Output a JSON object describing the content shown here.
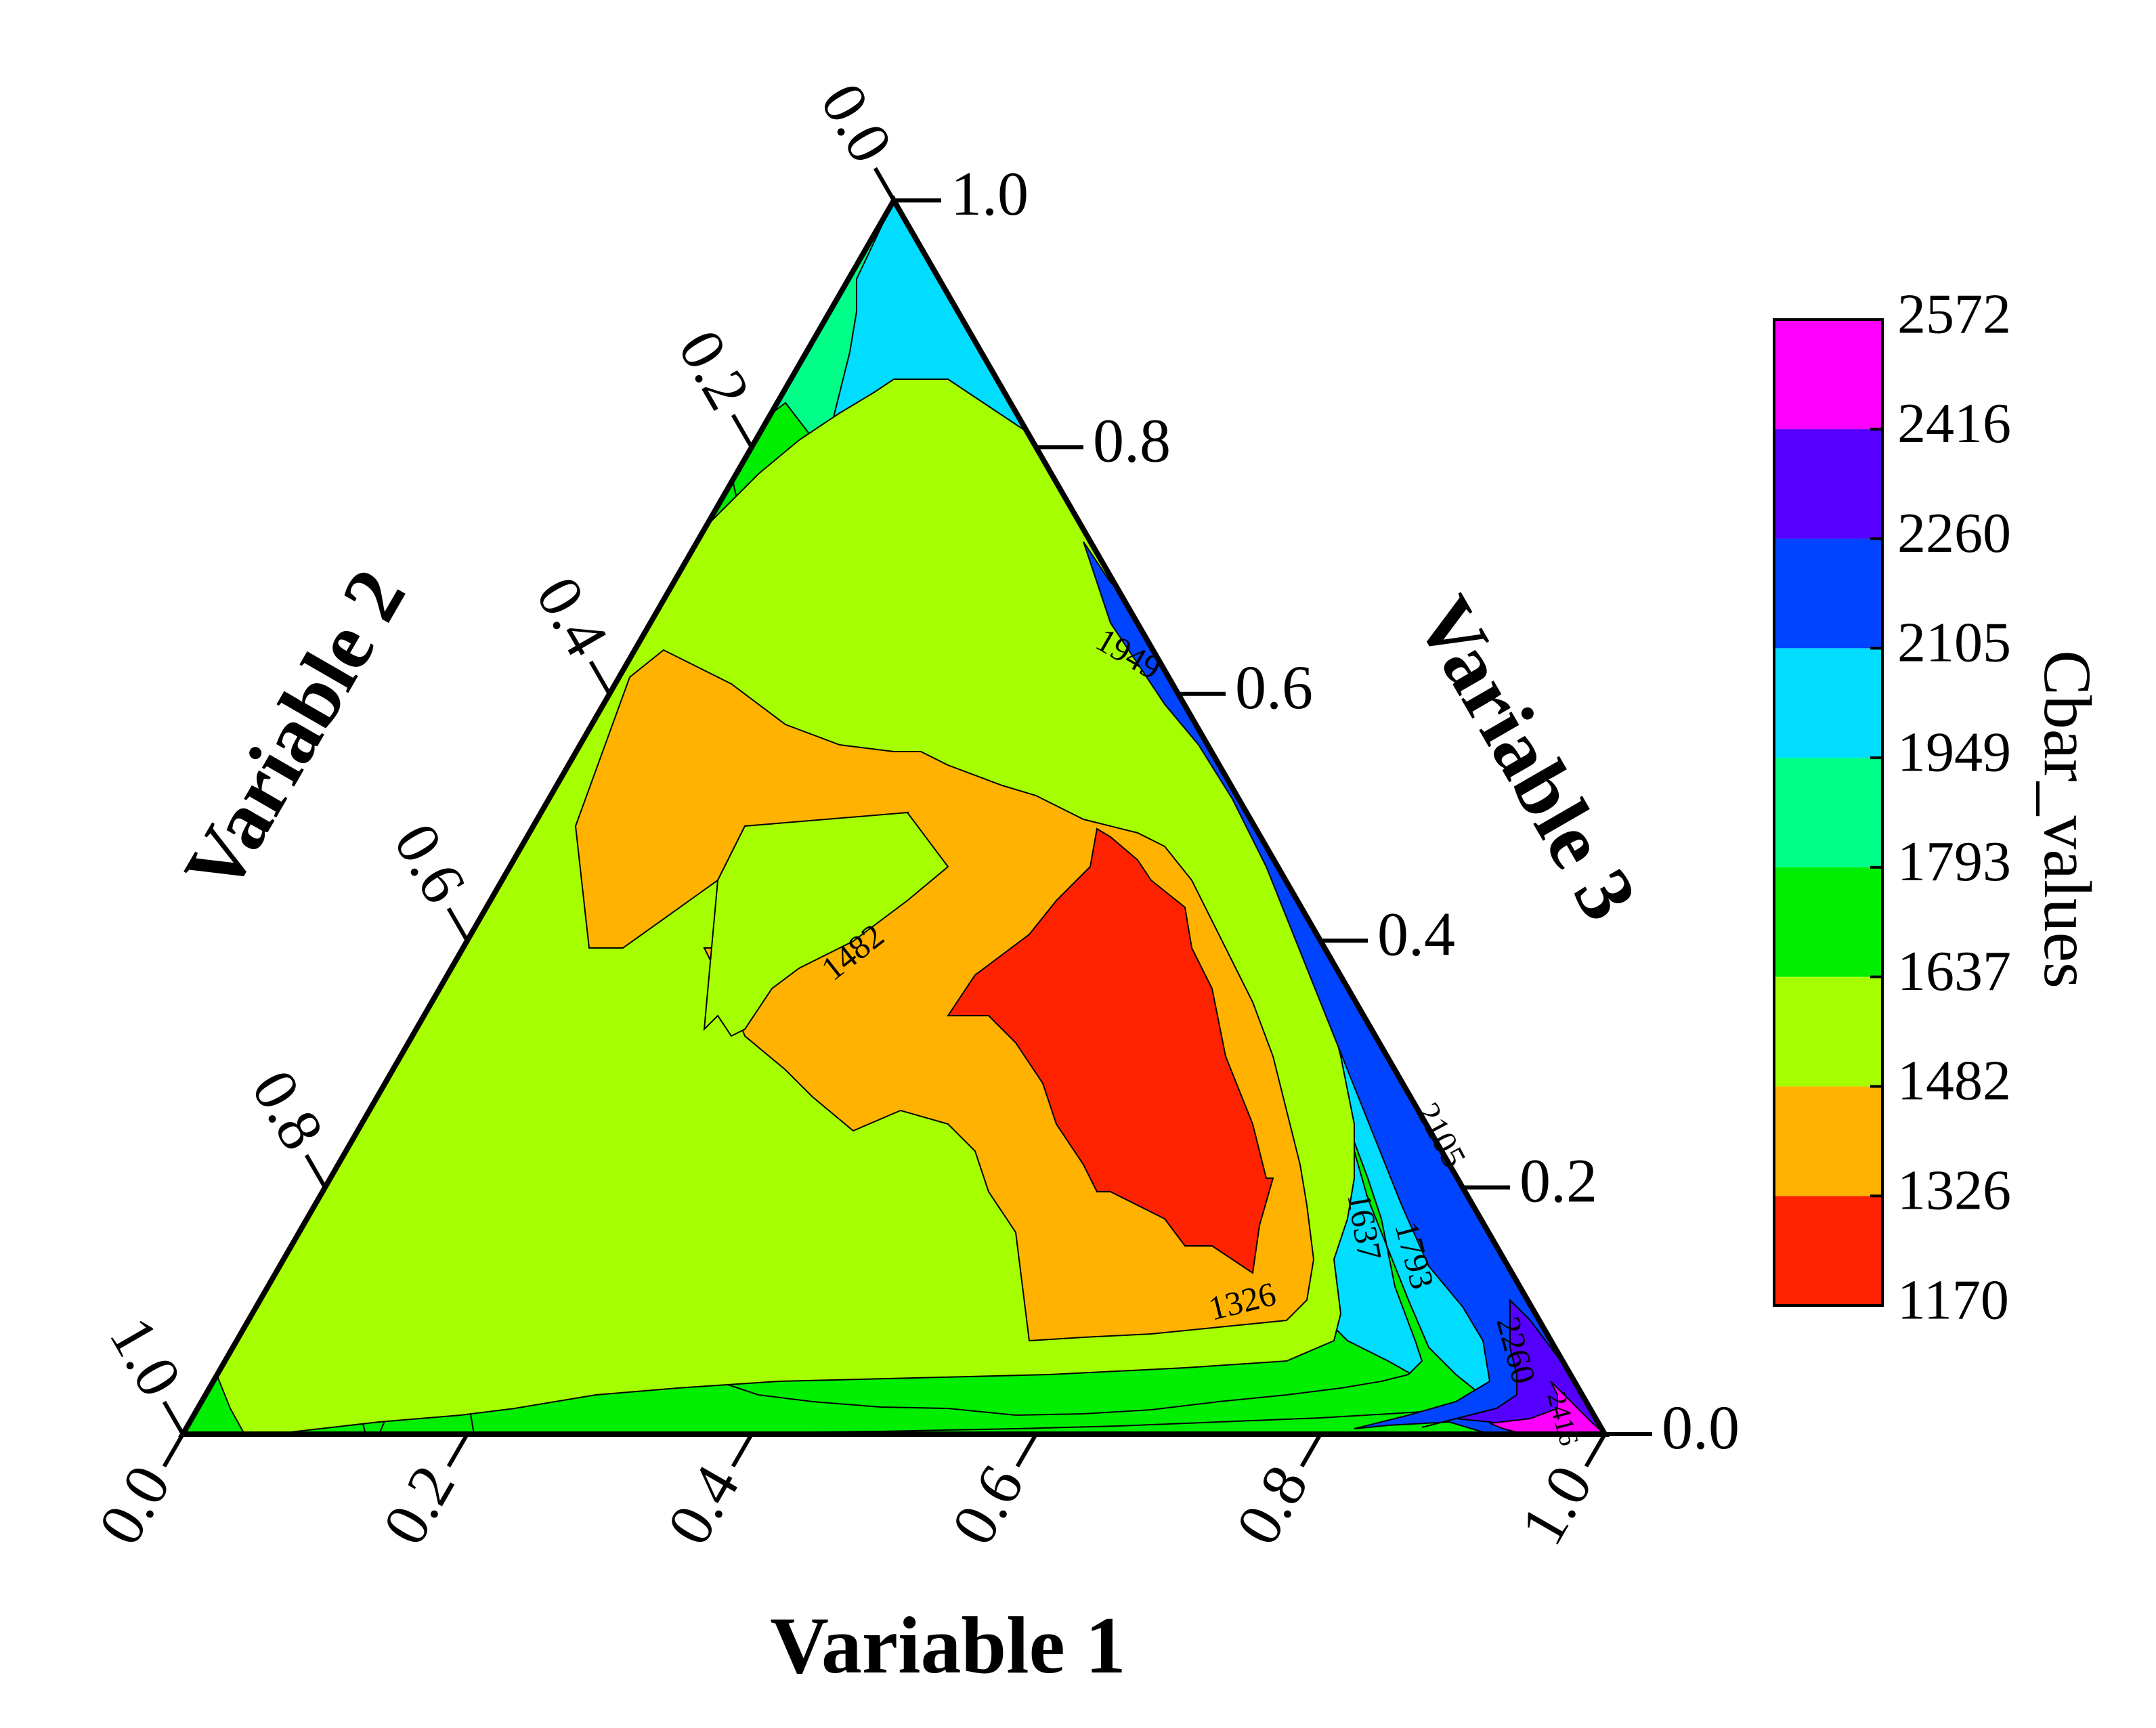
{
  "chart_data": {
    "type": "ternary-contour",
    "axes": [
      {
        "key": "a",
        "title": "Variable 1",
        "ticks": [
          "0.0",
          "0.2",
          "0.4",
          "0.6",
          "0.8",
          "1.0"
        ]
      },
      {
        "key": "b",
        "title": "Variable 2",
        "ticks": [
          "0.0",
          "0.2",
          "0.4",
          "0.6",
          "0.8",
          "1.0"
        ]
      },
      {
        "key": "c",
        "title": "Variable 3",
        "ticks": [
          "0.0",
          "0.2",
          "0.4",
          "0.6",
          "0.8",
          "1.0"
        ]
      }
    ],
    "colorbar": {
      "label": "Cbar_values",
      "levels": [
        "1170",
        "1326",
        "1482",
        "1637",
        "1793",
        "1949",
        "2105",
        "2260",
        "2416",
        "2572"
      ],
      "colors": [
        "#ff2200",
        "#ffb300",
        "#a6ff00",
        "#00ee00",
        "#00ff88",
        "#00ddff",
        "#0044ff",
        "#5500ff",
        "#ff00ff"
      ]
    },
    "contour_regions": [
      {
        "color": "#ff2200",
        "points": [
          [
            0.585,
            0.11
          ],
          [
            0.62,
            0.075
          ],
          [
            0.63,
            0.07
          ],
          [
            0.62,
            0.12
          ],
          [
            0.615,
            0.18
          ],
          [
            0.6,
            0.26
          ],
          [
            0.575,
            0.36
          ],
          [
            0.59,
            0.39
          ],
          [
            0.54,
            0.42
          ],
          [
            0.51,
            0.38
          ],
          [
            0.45,
            0.35
          ],
          [
            0.44,
            0.31
          ],
          [
            0.49,
            0.295
          ],
          [
            0.525,
            0.215
          ],
          [
            0.56,
            0.14
          ]
        ]
      },
      {
        "color": "#0044ff",
        "points": [
          [
            0.88,
            0.0
          ],
          [
            0.8,
            0.0
          ],
          [
            0.84,
            0.05
          ],
          [
            0.87,
            0.07
          ],
          [
            0.945,
            0.055
          ],
          [
            0.9,
            0.095
          ],
          [
            0.86,
            0.17
          ],
          [
            0.64,
            0.36
          ],
          [
            0.355,
            0.645
          ]
        ]
      },
      {
        "color": "#5500ff",
        "points": [
          [
            0.9,
            0.0
          ],
          [
            0.88,
            0.01
          ],
          [
            0.93,
            0.03
          ],
          [
            0.95,
            0.04
          ],
          [
            0.98,
            0.02
          ],
          [
            0.365,
            0.635
          ],
          [
            0.95,
            0.05
          ]
        ]
      },
      {
        "color": "#ff00ff",
        "points": [
          [
            0.97,
            0.0
          ],
          [
            0.95,
            0.005
          ],
          [
            0.995,
            0.005
          ],
          [
            1.0,
            0.0
          ]
        ]
      }
    ],
    "contour_labels": [
      "1949",
      "1482",
      "1326",
      "1637",
      "1793",
      "2105",
      "2260",
      "2416"
    ],
    "grid": false,
    "colorbar_position": "right"
  }
}
